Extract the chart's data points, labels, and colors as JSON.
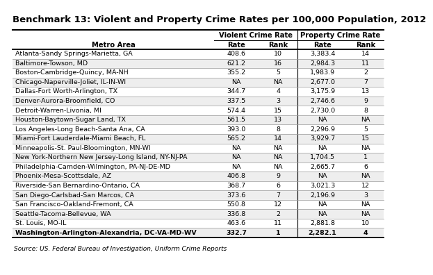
{
  "title": "Benchmark 13: Violent and Property Crime Rates per 100,000 Population, 2012",
  "source": "Source: US. Federal Bureau of Investigation, Uniform Crime Reports",
  "col_headers": [
    "Metro Area",
    "Rate",
    "Rank",
    "Rate",
    "Rank"
  ],
  "group_headers": [
    "Violent Crime Rate",
    "Property Crime Rate"
  ],
  "rows": [
    [
      "Atlanta-Sandy Springs-Marietta, GA",
      "408.6",
      "10",
      "3,383.4",
      "14"
    ],
    [
      "Baltimore-Towson, MD",
      "621.2",
      "16",
      "2,984.3",
      "11"
    ],
    [
      "Boston-Cambridge-Quincy, MA-NH",
      "355.2",
      "5",
      "1,983.9",
      "2"
    ],
    [
      "Chicago-Naperville-Joliet, IL-IN-WI",
      "NA",
      "NA",
      "2,677.0",
      "7"
    ],
    [
      "Dallas-Fort Worth-Arlington, TX",
      "344.7",
      "4",
      "3,175.9",
      "13"
    ],
    [
      "Denver-Aurora-Broomfield, CO",
      "337.5",
      "3",
      "2,746.6",
      "9"
    ],
    [
      "Detroit-Warren-Livonia, MI",
      "574.4",
      "15",
      "2,730.0",
      "8"
    ],
    [
      "Houston-Baytown-Sugar Land, TX",
      "561.5",
      "13",
      "NA",
      "NA"
    ],
    [
      "Los Angeles-Long Beach-Santa Ana, CA",
      "393.0",
      "8",
      "2,296.9",
      "5"
    ],
    [
      "Miami-Fort Lauderdale-Miami Beach, FL",
      "565.2",
      "14",
      "3,929.7",
      "15"
    ],
    [
      "Minneapolis-St. Paul-Bloomington, MN-WI",
      "NA",
      "NA",
      "NA",
      "NA"
    ],
    [
      "New York-Northern New Jersey-Long Island, NY-NJ-PA",
      "NA",
      "NA",
      "1,704.5",
      "1"
    ],
    [
      "Philadelphia-Camden-Wilmington, PA-NJ-DE-MD",
      "NA",
      "NA",
      "2,665.7",
      "6"
    ],
    [
      "Phoenix-Mesa-Scottsdale, AZ",
      "406.8",
      "9",
      "NA",
      "NA"
    ],
    [
      "Riverside-San Bernardino-Ontario, CA",
      "368.7",
      "6",
      "3,021.3",
      "12"
    ],
    [
      "San Diego-Carlsbad-San Marcos, CA",
      "373.6",
      "7",
      "2,196.9",
      "3"
    ],
    [
      "San Francisco-Oakland-Fremont, CA",
      "550.8",
      "12",
      "NA",
      "NA"
    ],
    [
      "Seattle-Tacoma-Bellevue, WA",
      "336.8",
      "2",
      "NA",
      "NA"
    ],
    [
      "St. Louis, MO-IL",
      "463.6",
      "11",
      "2,881.8",
      "10"
    ],
    [
      "Washington-Arlington-Alexandria, DC-VA-MD-WV",
      "332.7",
      "1",
      "2,282.1",
      "4"
    ]
  ],
  "bold_last_row": true,
  "bg_color": "#ffffff",
  "text_color": "#000000",
  "alt_row_color": "#eeeeee",
  "title_fontsize": 9.5,
  "table_fontsize": 6.8,
  "header_fontsize": 7.2,
  "source_fontsize": 6.5
}
